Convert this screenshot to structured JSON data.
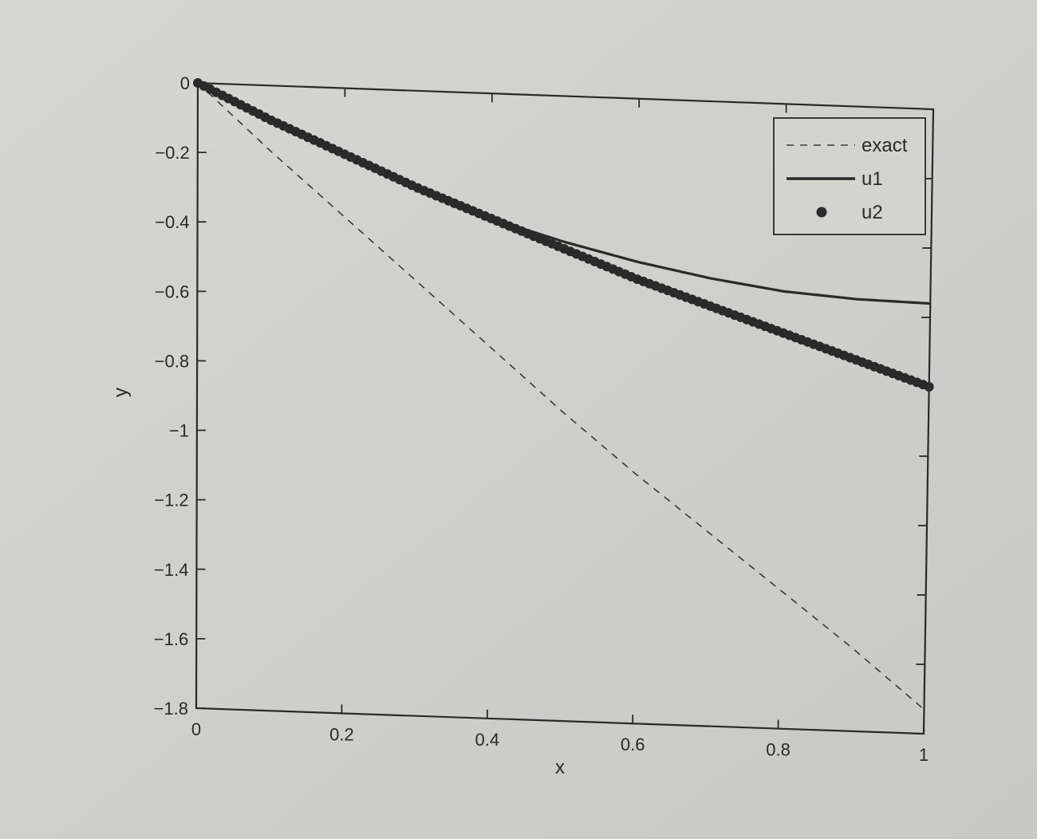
{
  "chart_data": {
    "type": "line",
    "title": "",
    "xlabel": "x",
    "ylabel": "y",
    "xlim": [
      0,
      1
    ],
    "ylim": [
      -1.8,
      0
    ],
    "xticks": [
      0,
      0.2,
      0.4,
      0.6,
      0.8,
      1
    ],
    "xtick_labels": [
      "0",
      "0.2",
      "0.4",
      "0.6",
      "0.8",
      "1"
    ],
    "yticks": [
      0,
      -0.2,
      -0.4,
      -0.6,
      -0.8,
      -1,
      -1.2,
      -1.4,
      -1.6,
      -1.8
    ],
    "ytick_labels": [
      "0",
      "−0.2",
      "−0.4",
      "−0.6",
      "−0.8",
      "−1",
      "−1.2",
      "−1.4",
      "−1.6",
      "−1.8"
    ],
    "grid": false,
    "legend_position": "top-right",
    "legend": [
      "exact",
      "u1",
      "u2"
    ],
    "series": [
      {
        "name": "exact",
        "style": "dashed",
        "color": "#3a3a3a",
        "x": [
          0,
          0.1,
          0.2,
          0.3,
          0.4,
          0.5,
          0.6,
          0.7,
          0.8,
          0.9,
          1.0
        ],
        "y": [
          0,
          -0.19,
          -0.37,
          -0.55,
          -0.73,
          -0.91,
          -1.08,
          -1.24,
          -1.4,
          -1.56,
          -1.73
        ]
      },
      {
        "name": "u1",
        "style": "solid",
        "color": "#2a2a2a",
        "x": [
          0,
          0.1,
          0.2,
          0.3,
          0.4,
          0.5,
          0.6,
          0.7,
          0.8,
          0.9,
          1.0
        ],
        "y": [
          0,
          -0.1,
          -0.19,
          -0.28,
          -0.36,
          -0.42,
          -0.47,
          -0.51,
          -0.54,
          -0.555,
          -0.56
        ]
      },
      {
        "name": "u2",
        "style": "markers",
        "color": "#2a2a2a",
        "x": [
          0,
          0.1,
          0.2,
          0.3,
          0.4,
          0.5,
          0.6,
          0.7,
          0.8,
          0.9,
          1.0
        ],
        "y": [
          0,
          -0.1,
          -0.19,
          -0.28,
          -0.36,
          -0.44,
          -0.52,
          -0.59,
          -0.66,
          -0.73,
          -0.8
        ]
      }
    ]
  }
}
